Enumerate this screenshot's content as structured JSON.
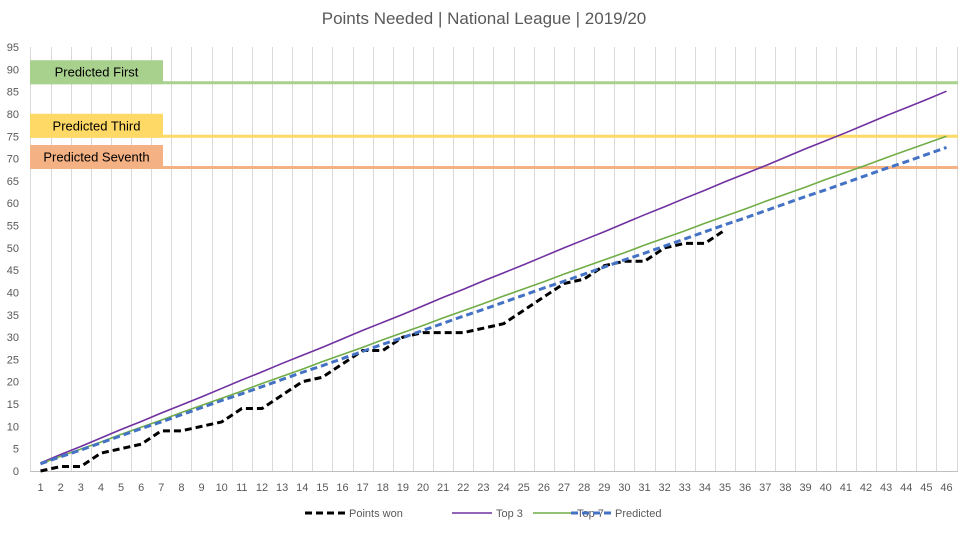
{
  "chart_data": {
    "type": "line",
    "title": "Points Needed  | National League  | 2019/20",
    "xlabel": "",
    "ylabel": "",
    "x": [
      1,
      2,
      3,
      4,
      5,
      6,
      7,
      8,
      9,
      10,
      11,
      12,
      13,
      14,
      15,
      16,
      17,
      18,
      19,
      20,
      21,
      22,
      23,
      24,
      25,
      26,
      27,
      28,
      29,
      30,
      31,
      32,
      33,
      34,
      35,
      36,
      37,
      38,
      39,
      40,
      41,
      42,
      43,
      44,
      45,
      46
    ],
    "xlim": [
      1,
      46
    ],
    "ylim": [
      0,
      95
    ],
    "yticks": [
      0,
      5,
      10,
      15,
      20,
      25,
      30,
      35,
      40,
      45,
      50,
      55,
      60,
      65,
      70,
      75,
      80,
      85,
      90,
      95
    ],
    "grid": "vertical",
    "legend": "bottom",
    "series": [
      {
        "name": "Points won",
        "color": "#000000",
        "style": "dashed",
        "values": [
          0,
          1,
          1,
          4,
          5,
          6,
          9,
          9,
          10,
          11,
          14,
          14,
          17,
          20,
          21,
          24,
          27,
          27,
          30,
          31,
          31,
          31,
          32,
          33,
          36,
          39,
          42,
          43,
          46,
          47,
          47,
          50,
          51,
          51,
          54,
          null,
          null,
          null,
          null,
          null,
          null,
          null,
          null,
          null,
          null,
          null
        ]
      },
      {
        "name": "Top 3",
        "color": "#7030a0",
        "style": "solid",
        "values": [
          1.8,
          3.7,
          5.5,
          7.4,
          9.3,
          11.1,
          13.0,
          14.8,
          16.6,
          18.5,
          20.4,
          22.2,
          24.1,
          25.9,
          27.7,
          29.6,
          31.5,
          33.3,
          35.1,
          37.0,
          38.9,
          40.7,
          42.6,
          44.4,
          46.2,
          48.1,
          50.0,
          51.8,
          53.6,
          55.5,
          57.4,
          59.2,
          61.1,
          62.9,
          64.8,
          66.6,
          68.4,
          70.3,
          72.2,
          74.0,
          75.8,
          77.7,
          79.6,
          81.4,
          83.2,
          85.1
        ]
      },
      {
        "name": "Top 7",
        "color": "#70ad47",
        "style": "solid",
        "values": [
          1.6,
          3.3,
          4.9,
          6.5,
          8.2,
          9.8,
          11.4,
          13.1,
          14.7,
          16.3,
          17.9,
          19.6,
          21.2,
          22.8,
          24.5,
          26.1,
          27.7,
          29.4,
          31.0,
          32.6,
          34.3,
          35.9,
          37.5,
          39.2,
          40.8,
          42.4,
          44.1,
          45.7,
          47.3,
          48.9,
          50.6,
          52.2,
          53.8,
          55.5,
          57.1,
          58.7,
          60.4,
          62.0,
          63.6,
          65.3,
          66.9,
          68.5,
          70.2,
          71.8,
          73.4,
          75.0
        ]
      },
      {
        "name": "Predicted",
        "color": "#4472c4",
        "style": "dashed",
        "values": [
          1.6,
          3.2,
          4.7,
          6.3,
          7.9,
          9.5,
          11.0,
          12.6,
          14.2,
          15.8,
          17.3,
          18.9,
          20.5,
          22.1,
          23.6,
          25.2,
          26.8,
          28.4,
          29.9,
          31.5,
          33.1,
          34.7,
          36.2,
          37.8,
          39.4,
          41.0,
          42.5,
          44.1,
          45.7,
          47.3,
          48.8,
          50.4,
          52.0,
          53.6,
          55.2,
          56.7,
          58.3,
          59.9,
          61.5,
          63.0,
          64.6,
          66.2,
          67.8,
          69.3,
          70.9,
          72.5
        ]
      }
    ],
    "reference_lines": [
      {
        "label": "Predicted First",
        "value": 87,
        "line_color": "#a9d18e",
        "box_color": "#a9d18e"
      },
      {
        "label": "Predicted Third",
        "value": 75,
        "line_color": "#ffd966",
        "box_color": "#ffd966"
      },
      {
        "label": "Predicted Seventh",
        "value": 68,
        "line_color": "#f4b183",
        "box_color": "#f4b183"
      }
    ]
  }
}
